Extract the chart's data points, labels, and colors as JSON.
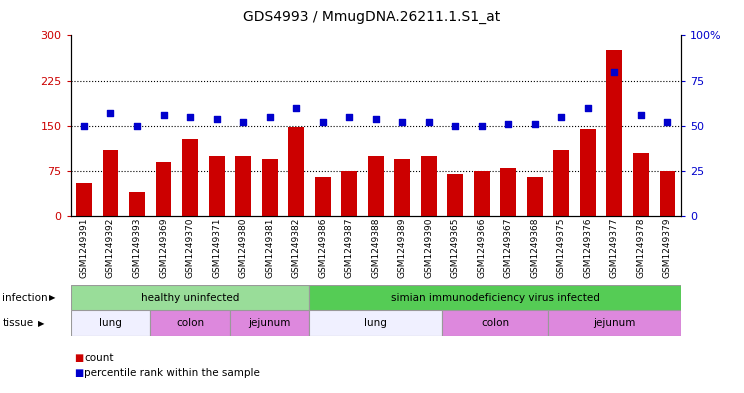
{
  "title": "GDS4993 / MmugDNA.26211.1.S1_at",
  "samples": [
    "GSM1249391",
    "GSM1249392",
    "GSM1249393",
    "GSM1249369",
    "GSM1249370",
    "GSM1249371",
    "GSM1249380",
    "GSM1249381",
    "GSM1249382",
    "GSM1249386",
    "GSM1249387",
    "GSM1249388",
    "GSM1249389",
    "GSM1249390",
    "GSM1249365",
    "GSM1249366",
    "GSM1249367",
    "GSM1249368",
    "GSM1249375",
    "GSM1249376",
    "GSM1249377",
    "GSM1249378",
    "GSM1249379"
  ],
  "counts": [
    55,
    110,
    40,
    90,
    128,
    100,
    100,
    95,
    148,
    65,
    75,
    100,
    95,
    100,
    70,
    75,
    80,
    65,
    110,
    145,
    275,
    105,
    75
  ],
  "percentiles": [
    50,
    57,
    50,
    56,
    55,
    54,
    52,
    55,
    60,
    52,
    55,
    54,
    52,
    52,
    50,
    50,
    51,
    51,
    55,
    60,
    80,
    56,
    52
  ],
  "left_ylim": [
    0,
    300
  ],
  "left_yticks": [
    0,
    75,
    150,
    225,
    300
  ],
  "right_ylim": [
    0,
    100
  ],
  "right_yticks": [
    0,
    25,
    50,
    75,
    100
  ],
  "bar_color": "#cc0000",
  "dot_color": "#0000cc",
  "plot_bg_color": "#e8e8e8",
  "tick_bg_color": "#d8d8d8",
  "infection_groups": [
    {
      "label": "healthy uninfected",
      "start": 0,
      "end": 9,
      "color": "#99dd99"
    },
    {
      "label": "simian immunodeficiency virus infected",
      "start": 9,
      "end": 23,
      "color": "#55cc55"
    }
  ],
  "tissue_groups": [
    {
      "label": "lung",
      "start": 0,
      "end": 3,
      "color": "#f0f0ff"
    },
    {
      "label": "colon",
      "start": 3,
      "end": 6,
      "color": "#dd88dd"
    },
    {
      "label": "jejunum",
      "start": 6,
      "end": 9,
      "color": "#dd88dd"
    },
    {
      "label": "lung",
      "start": 9,
      "end": 14,
      "color": "#f0f0ff"
    },
    {
      "label": "colon",
      "start": 14,
      "end": 18,
      "color": "#dd88dd"
    },
    {
      "label": "jejunum",
      "start": 18,
      "end": 23,
      "color": "#dd88dd"
    }
  ],
  "infection_label": "infection",
  "tissue_label": "tissue",
  "legend_count_label": "count",
  "legend_percentile_label": "percentile rank within the sample",
  "hgrid_values": [
    75,
    150,
    225
  ]
}
